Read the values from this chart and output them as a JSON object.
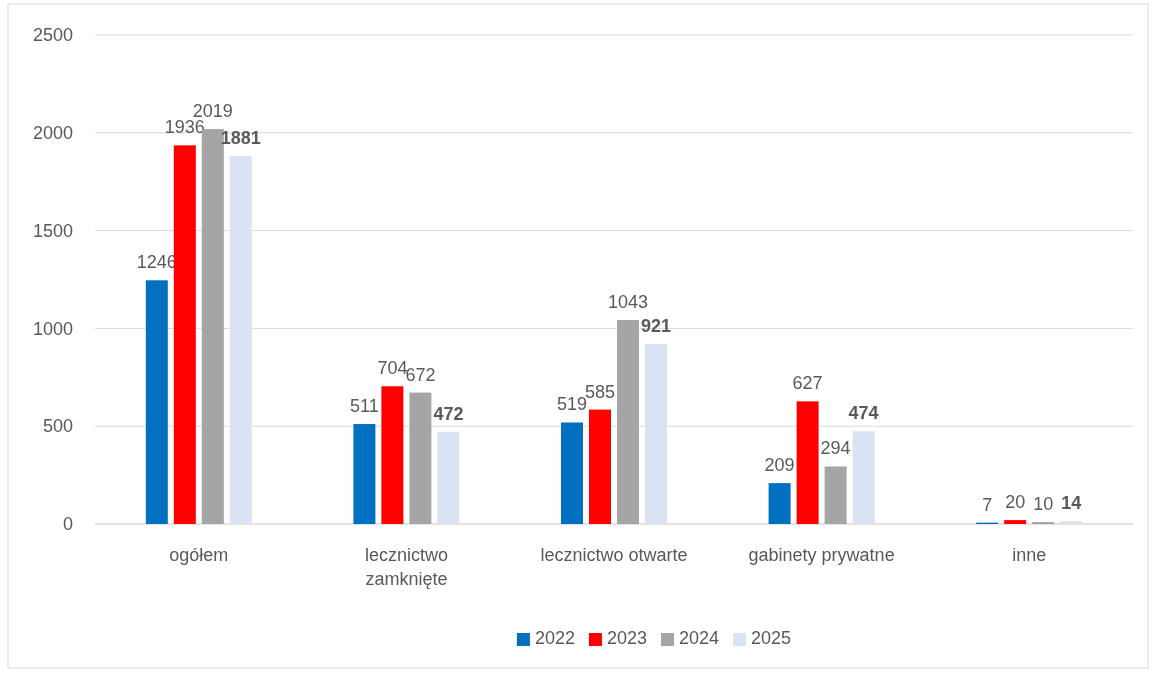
{
  "chart_data": {
    "type": "bar",
    "categories": [
      "ogółem",
      "lecznictwo zamknięte",
      "lecznictwo otwarte",
      "gabinety prywatne",
      "inne"
    ],
    "series": [
      {
        "name": "2022",
        "color": "#0070c0",
        "values": [
          1246,
          511,
          519,
          209,
          7
        ]
      },
      {
        "name": "2023",
        "color": "#ff0000",
        "values": [
          1936,
          704,
          585,
          627,
          20
        ]
      },
      {
        "name": "2024",
        "color": "#a5a5a5",
        "values": [
          2019,
          672,
          1043,
          294,
          10
        ]
      },
      {
        "name": "2025",
        "color": "#dae3f3",
        "values": [
          1881,
          472,
          921,
          474,
          14
        ]
      }
    ],
    "ylim": [
      0,
      2500
    ],
    "yticks": [
      0,
      500,
      1000,
      1500,
      2000,
      2500
    ],
    "grid": "y",
    "legend": "bottom",
    "data_labels": true
  }
}
